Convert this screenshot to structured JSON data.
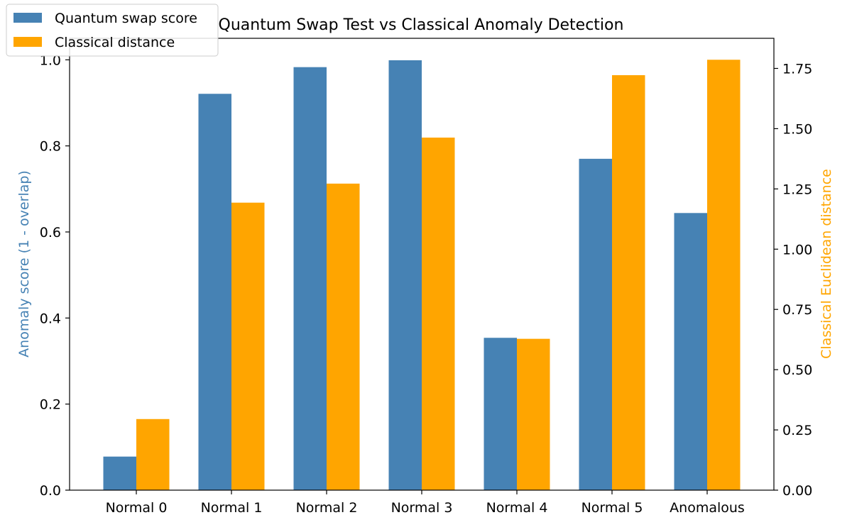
{
  "chart_data": {
    "type": "bar",
    "title": "Quantum Swap Test vs Classical Anomaly Detection",
    "categories": [
      "Normal 0",
      "Normal 1",
      "Normal 2",
      "Normal 3",
      "Normal 4",
      "Normal 5",
      "Anomalous"
    ],
    "ylabel": "Anomaly score (1 - overlap)",
    "y2label": "Classical Euclidean distance",
    "ylim": [
      0,
      1.0
    ],
    "y2lim": [
      0,
      1.875
    ],
    "yticks": [
      "0.0",
      "0.2",
      "0.4",
      "0.6",
      "0.8",
      "1.0"
    ],
    "y2ticks": [
      "0.00",
      "0.25",
      "0.50",
      "0.75",
      "1.00",
      "1.25",
      "1.50",
      "1.75"
    ],
    "series": [
      {
        "name": "Quantum swap score",
        "axis": "left",
        "color": "#4682b4",
        "values": [
          0.078,
          0.921,
          0.983,
          0.999,
          0.354,
          0.77,
          0.644
        ]
      },
      {
        "name": "Classical distance",
        "axis": "right",
        "color": "#ffa500",
        "values": [
          0.295,
          1.193,
          1.272,
          1.463,
          0.628,
          1.722,
          1.786
        ]
      }
    ],
    "legend": "top-left",
    "grid": false
  }
}
